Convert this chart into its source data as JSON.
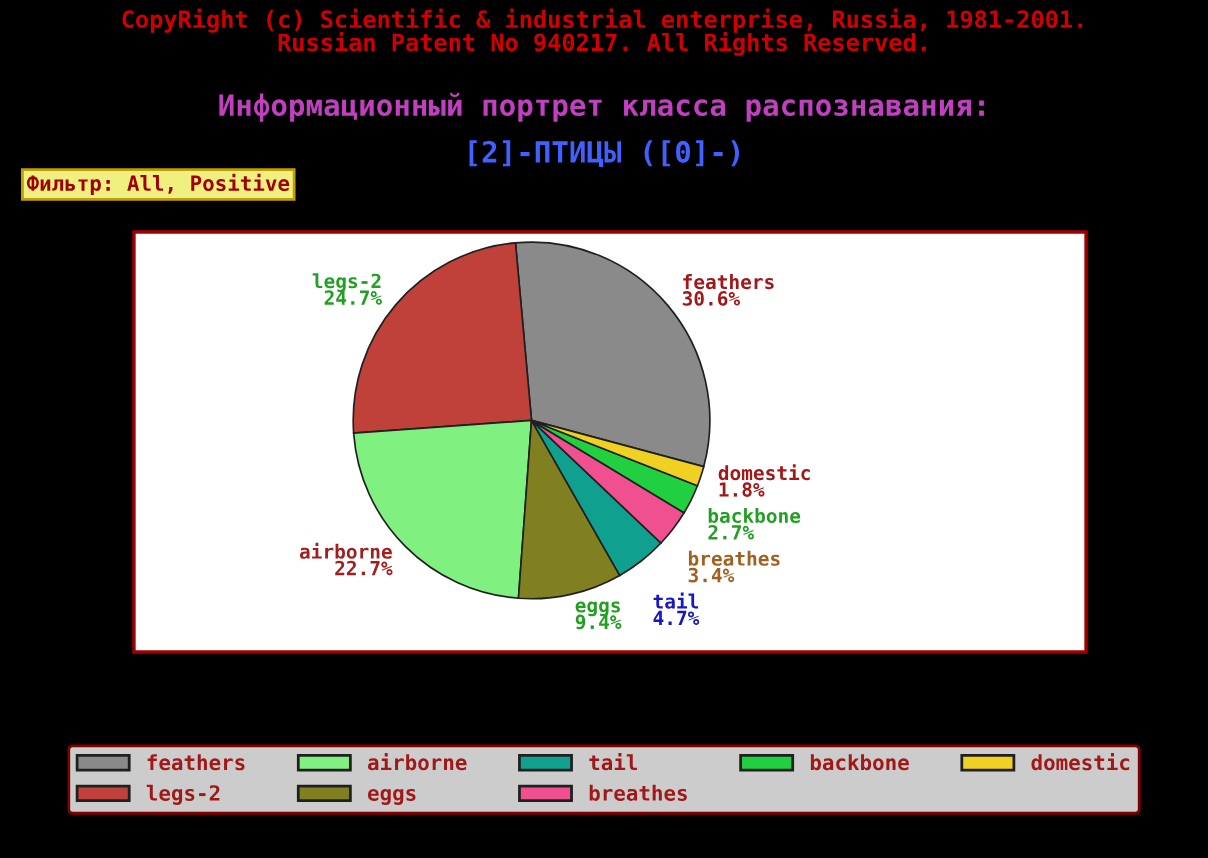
{
  "chart_data": {
    "type": "pie",
    "title": "Информационный портрет класса распознавания:",
    "subtitle": "[2]-ПТИЦЫ ([0]-)",
    "annotations": [
      "CopyRight (c) Scientific & industrial enterprise, Russia, 1981-2001.\nRussian Patent No 940217. All Rights Reserved.",
      "Фильтр: All, Positive"
    ],
    "categories": [
      "feathers",
      "legs-2",
      "airborne",
      "eggs",
      "tail",
      "breathes",
      "backbone",
      "domestic"
    ],
    "values": [
      30.6,
      24.7,
      22.7,
      9.4,
      4.7,
      3.4,
      2.7,
      1.8
    ],
    "value_labels": [
      "30.6%",
      "24.7%",
      "22.7%",
      "9.4%",
      "4.7%",
      "3.4%",
      "2.7%",
      "1.8%"
    ],
    "colors": [
      "#8a8a8a",
      "#c0403a",
      "#80f080",
      "#808020",
      "#10a090",
      "#f05090",
      "#20d040",
      "#f0d020"
    ],
    "legend": "bottom"
  }
}
